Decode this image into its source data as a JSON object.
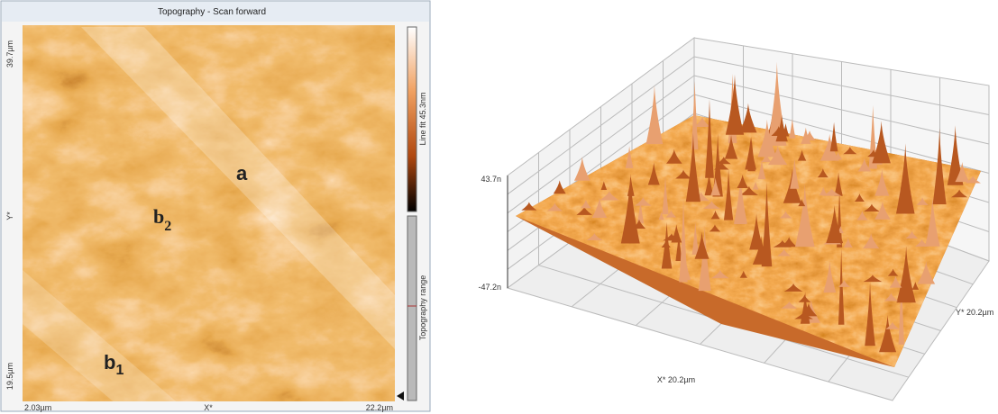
{
  "left_panel": {
    "title": "Topography - Scan forward",
    "y_top": "39.7µm",
    "y_bottom": "19.5µm",
    "y_axis": "Y*",
    "x_left": "2.03µm",
    "x_axis": "X*",
    "x_right": "22.2µm",
    "colorbar_label": "Line fit 45.3nm",
    "range_label": "Topography range",
    "labels": [
      {
        "text": "a",
        "subscript": null
      },
      {
        "text": "b",
        "subscript": "2"
      },
      {
        "text": "b",
        "subscript": "1"
      }
    ]
  },
  "right_panel": {
    "z_top": "43.7n",
    "z_bottom": "-47.2n",
    "x_axis": "X* 20.2µm",
    "y_axis": "Y* 20.2µm"
  }
}
